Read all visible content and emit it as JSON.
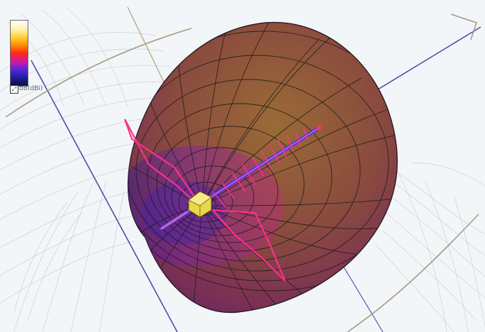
{
  "legend": {
    "label": "dB(dBi)",
    "icon": "color-scale-toggle-icon",
    "gradient_colors": [
      "#ffffff",
      "#fff3b0",
      "#ffd23c",
      "#ff8a00",
      "#ff2a16",
      "#cc1aa6",
      "#5a24e0",
      "#1a1f9a",
      "#0c0e3a"
    ]
  },
  "scene": {
    "object": "antenna-radiation-pattern-3d",
    "lobe_color_top": "#7e5a2e",
    "lobe_color_mid": "#8d3a4a",
    "lobe_color_bottom": "#4b1f6a",
    "mesh_color": "#1b1b1b",
    "antenna_boom_color": "#6a2bd8",
    "antenna_element_color": "#ff2f8a",
    "feed_color": "#e8d84a",
    "axis_color_blue": "#4d4fa6",
    "axis_color_tan": "#a99a82",
    "background": "#f3f6f8"
  }
}
